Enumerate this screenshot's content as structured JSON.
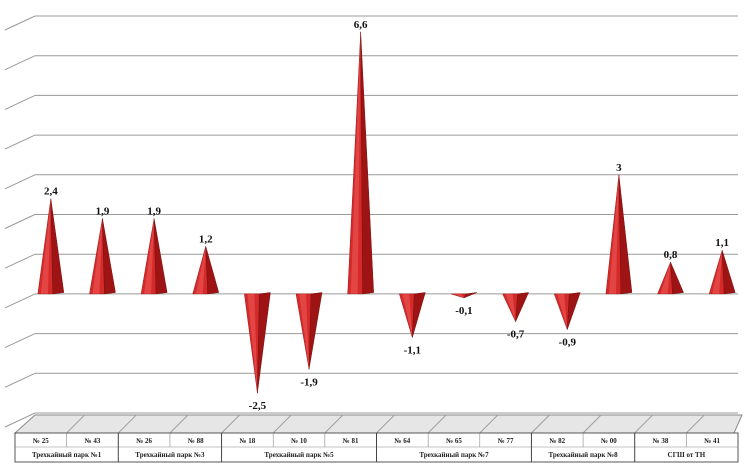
{
  "chart_data": {
    "type": "bar",
    "bar_shape": "pyramid",
    "bar_color": "#d42a2a",
    "grid": true,
    "categories": [
      "№ 25",
      "№ 43",
      "№ 26",
      "№ 88",
      "№ 18",
      "№ 10",
      "№ 81",
      "№ 64",
      "№ 65",
      "№ 77",
      "№ 82",
      "№ 00",
      "№ 38",
      "№ 41"
    ],
    "values": [
      2.4,
      1.9,
      1.9,
      1.2,
      -2.5,
      -1.9,
      6.6,
      -1.1,
      -0.1,
      -0.7,
      -0.9,
      3,
      0.8,
      1.1
    ],
    "data_labels": [
      "2,4",
      "1,9",
      "1,9",
      "1,2",
      "-2,5",
      "-1,9",
      "6,6",
      "-1,1",
      "-0,1",
      "-0,7",
      "-0,9",
      "3",
      "0,8",
      "1,1"
    ],
    "groups": [
      {
        "label": "Трехкайный парк №1",
        "categories": [
          "№ 25",
          "№ 43"
        ]
      },
      {
        "label": "Трехкайный парк №3",
        "categories": [
          "№ 26",
          "№ 88"
        ]
      },
      {
        "label": "Трехкайный парк №5",
        "categories": [
          "№ 18",
          "№ 10",
          "№ 81"
        ]
      },
      {
        "label": "Трехкайный парк №7",
        "categories": [
          "№ 64",
          "№ 65",
          "№ 77"
        ]
      },
      {
        "label": "Трехкайный парк №8",
        "categories": [
          "№ 82",
          "№ 00"
        ]
      },
      {
        "label": "СГШ от ТН",
        "categories": [
          "№ 38",
          "№ 41"
        ]
      }
    ],
    "ylim": [
      -3,
      7
    ],
    "title": "",
    "xlabel": "",
    "ylabel": ""
  }
}
